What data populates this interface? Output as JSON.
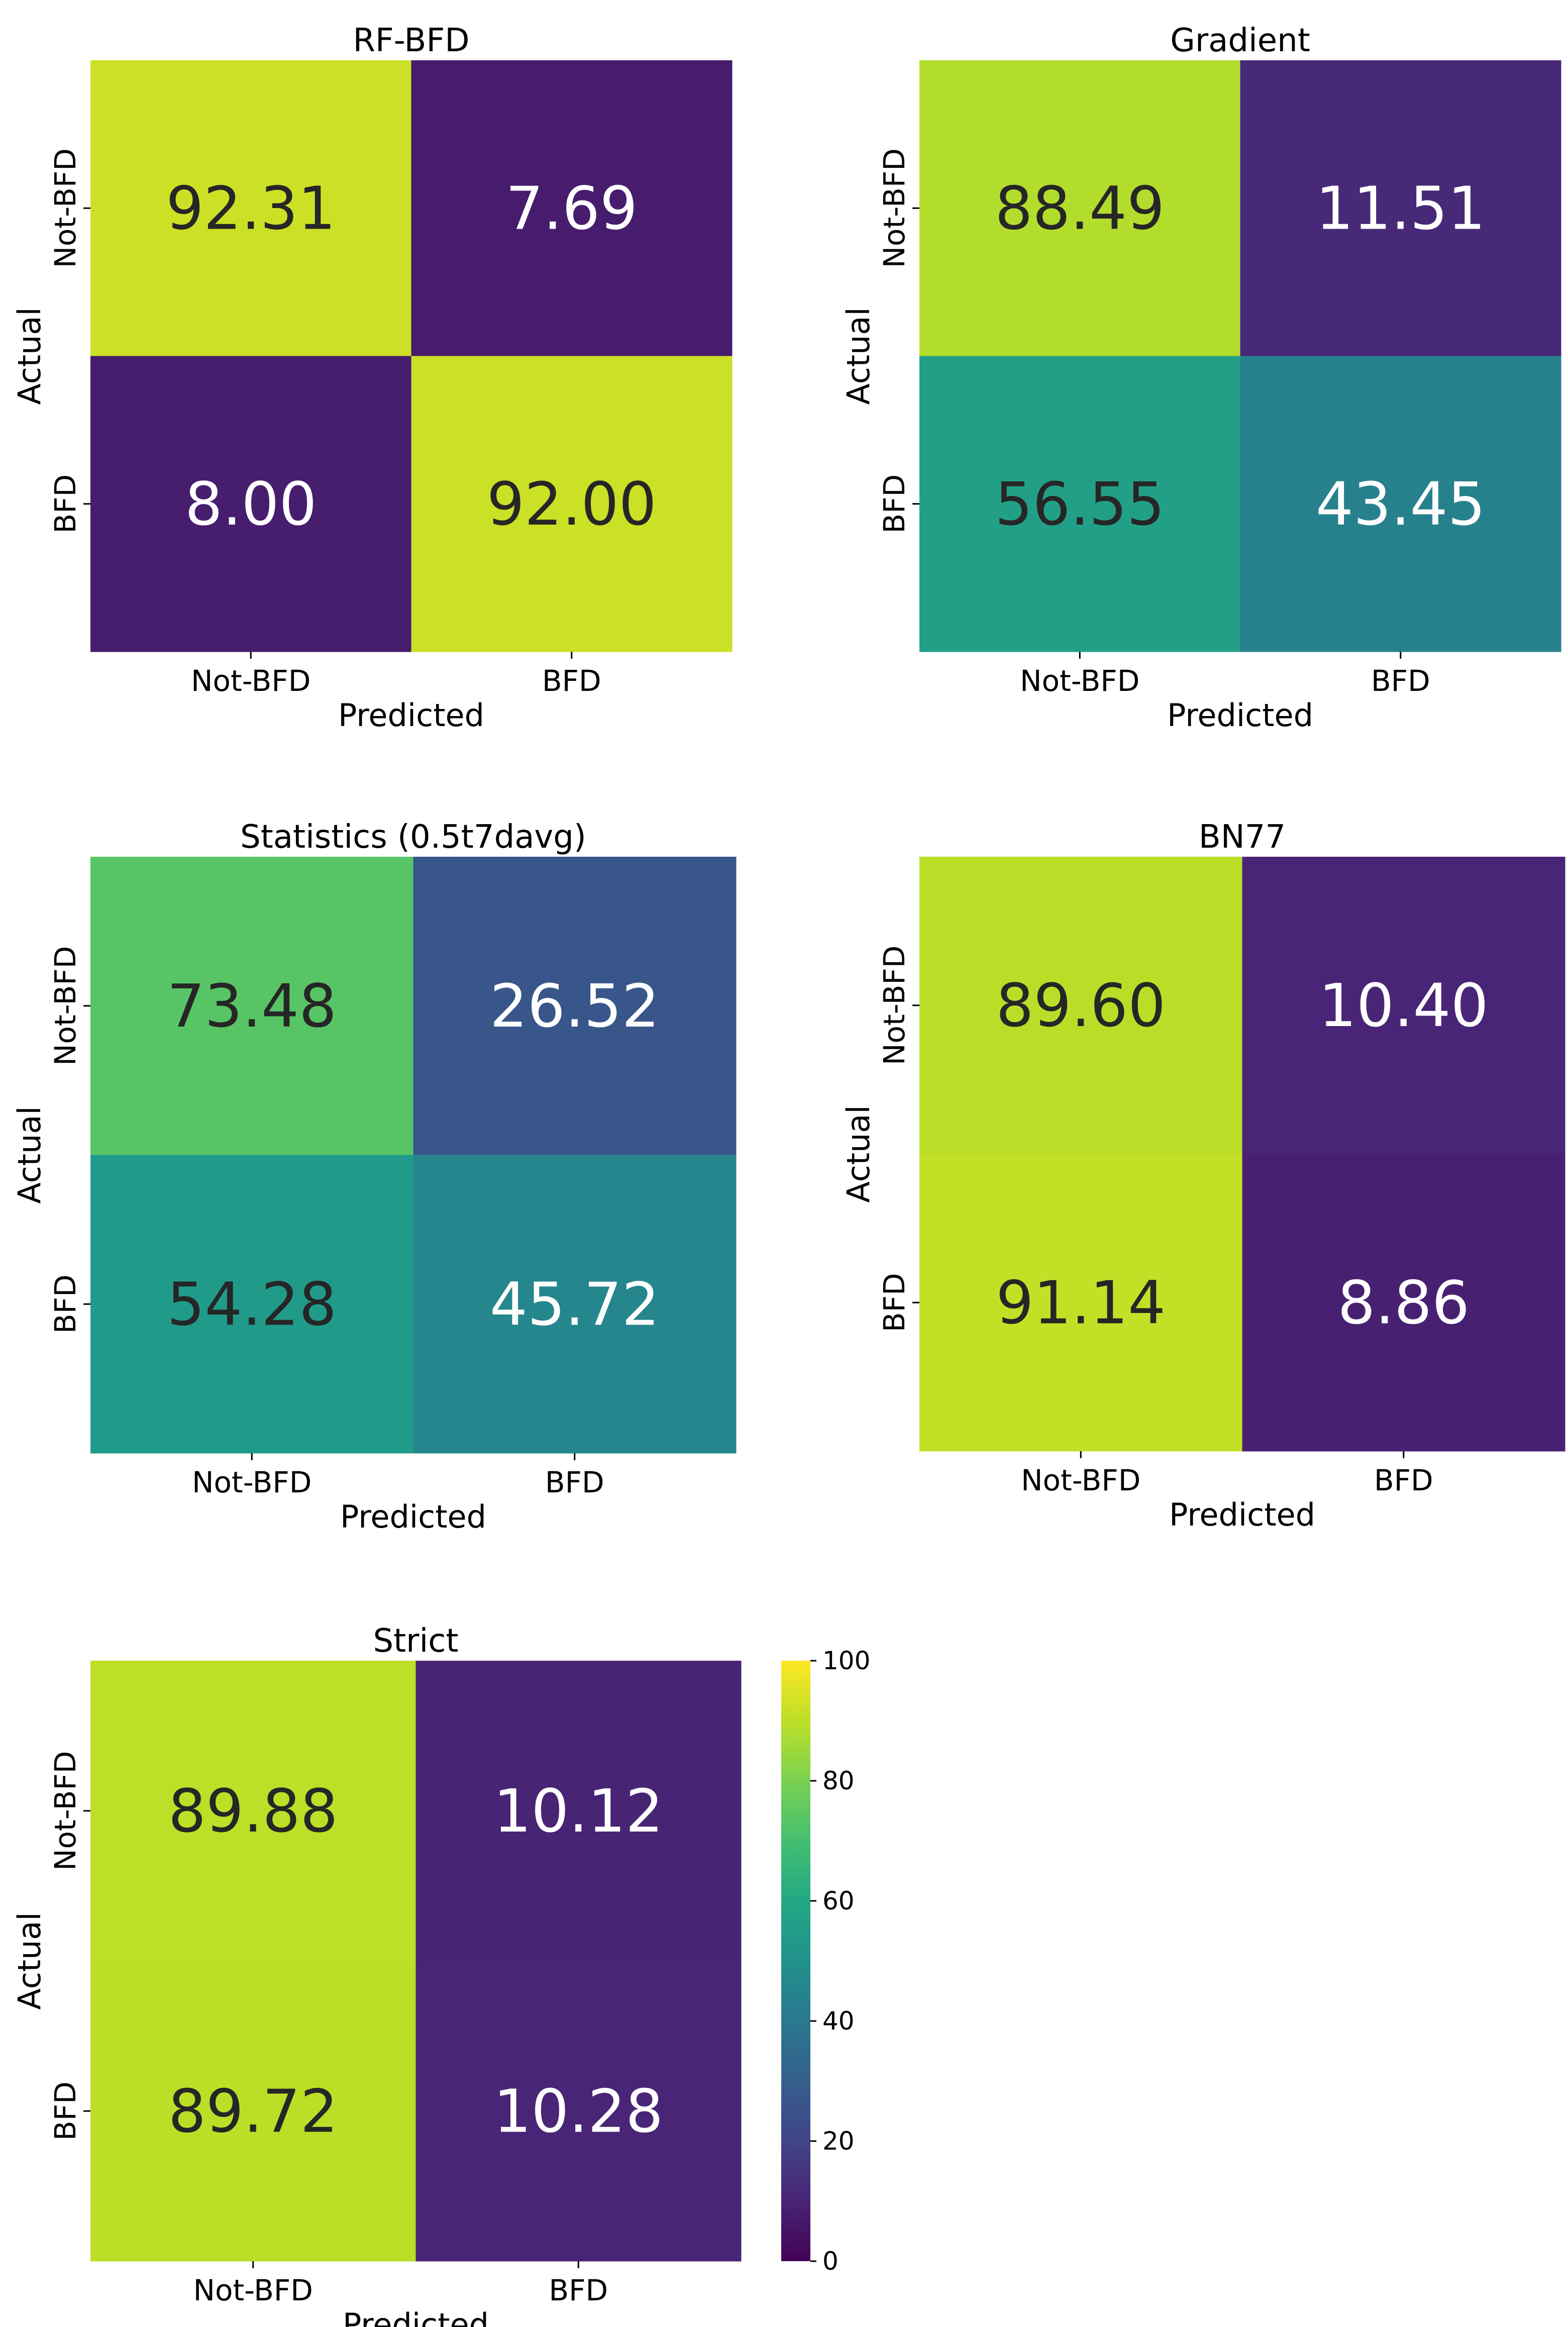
{
  "colors": {
    "dark_text": "#262626",
    "light_text": "#ffffff",
    "tick": "#000000"
  },
  "colorbar": {
    "min": 0,
    "max": 100,
    "ticks": [
      "0",
      "20",
      "40",
      "60",
      "80",
      "100"
    ],
    "colormap": "viridis"
  },
  "chart_data": [
    {
      "type": "heatmap",
      "title": "RF-BFD",
      "xlabel": "Predicted",
      "ylabel": "Actual",
      "x_categories": [
        "Not-BFD",
        "BFD"
      ],
      "y_categories": [
        "Not-BFD",
        "BFD"
      ],
      "values": [
        [
          92.31,
          7.69
        ],
        [
          8.0,
          92.0
        ]
      ],
      "labels": [
        [
          "92.31",
          "7.69"
        ],
        [
          "8.00",
          "92.00"
        ]
      ],
      "vmin": 0,
      "vmax": 100
    },
    {
      "type": "heatmap",
      "title": "Gradient",
      "xlabel": "Predicted",
      "ylabel": "Actual",
      "x_categories": [
        "Not-BFD",
        "BFD"
      ],
      "y_categories": [
        "Not-BFD",
        "BFD"
      ],
      "values": [
        [
          88.49,
          11.51
        ],
        [
          56.55,
          43.45
        ]
      ],
      "labels": [
        [
          "88.49",
          "11.51"
        ],
        [
          "56.55",
          "43.45"
        ]
      ],
      "vmin": 0,
      "vmax": 100
    },
    {
      "type": "heatmap",
      "title": "Statistics (0.5t7davg)",
      "xlabel": "Predicted",
      "ylabel": "Actual",
      "x_categories": [
        "Not-BFD",
        "BFD"
      ],
      "y_categories": [
        "Not-BFD",
        "BFD"
      ],
      "values": [
        [
          73.48,
          26.52
        ],
        [
          54.28,
          45.72
        ]
      ],
      "labels": [
        [
          "73.48",
          "26.52"
        ],
        [
          "54.28",
          "45.72"
        ]
      ],
      "vmin": 0,
      "vmax": 100
    },
    {
      "type": "heatmap",
      "title": "BN77",
      "xlabel": "Predicted",
      "ylabel": "Actual",
      "x_categories": [
        "Not-BFD",
        "BFD"
      ],
      "y_categories": [
        "Not-BFD",
        "BFD"
      ],
      "values": [
        [
          89.6,
          10.4
        ],
        [
          91.14,
          8.86
        ]
      ],
      "labels": [
        [
          "89.60",
          "10.40"
        ],
        [
          "91.14",
          "8.86"
        ]
      ],
      "vmin": 0,
      "vmax": 100
    },
    {
      "type": "heatmap",
      "title": "Strict",
      "xlabel": "Predicted",
      "ylabel": "Actual",
      "x_categories": [
        "Not-BFD",
        "BFD"
      ],
      "y_categories": [
        "Not-BFD",
        "BFD"
      ],
      "values": [
        [
          89.88,
          10.12
        ],
        [
          89.72,
          10.28
        ]
      ],
      "labels": [
        [
          "89.88",
          "10.12"
        ],
        [
          "89.72",
          "10.28"
        ]
      ],
      "vmin": 0,
      "vmax": 100
    }
  ]
}
